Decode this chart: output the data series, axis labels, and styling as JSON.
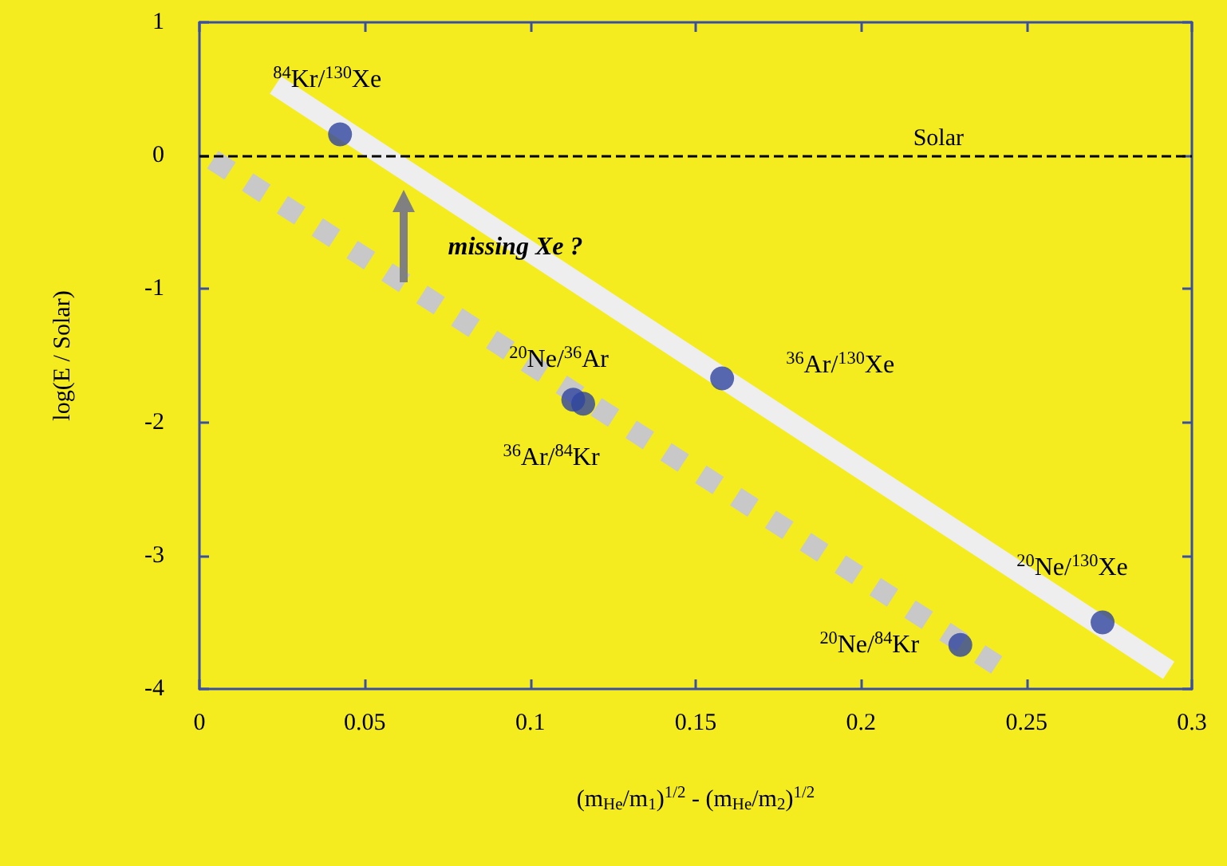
{
  "chart_data": {
    "type": "scatter",
    "xlabel": "(m$_{He}$/m$_{1}$)$^{1/2}$ - (m$_{He}$/m$_{2}$)$^{1/2}$",
    "ylabel": "log(E / Solar)",
    "series": [
      {
        "color": "#2f45a0",
        "x": [
          0.0425,
          0.113,
          0.116,
          0.158,
          0.23,
          0.273
        ],
        "values": [
          0.16,
          -1.83,
          -1.86,
          -1.67,
          -3.67,
          -3.5
        ]
      },
      {
        "type": "line",
        "color": "#eeeeee",
        "line_style": "solid",
        "marker": "none",
        "x": [
          0.023,
          0.293
        ],
        "values": [
          0.53,
          -3.86
        ]
      },
      {
        "type": "line",
        "color": "#c8c8c8",
        "line_style": "dotted",
        "marker": "none",
        "x": [
          0.004,
          0.241
        ],
        "values": [
          -0.03,
          -3.82
        ]
      }
    ],
    "marker": "circle",
    "xlim": [
      0,
      0.3
    ],
    "xticks": [
      0,
      0.05,
      0.1,
      0.15,
      0.2,
      0.25,
      0.3
    ],
    "ylim": [
      -4,
      1
    ],
    "yticks": [
      -4,
      -3,
      -2,
      -1,
      0,
      1
    ],
    "grid": false,
    "ref_lines": [
      {
        "axis": "y",
        "value": 0,
        "label": "Solar",
        "color": "#000000",
        "line_style": "dashed"
      }
    ],
    "annotations": [
      {
        "text": "$^{84}$Kr/$^{130}$Xe",
        "x": 0.0425,
        "y": 0.16
      },
      {
        "text": "$^{20}$Ne/$^{36}$Ar",
        "x": 0.113,
        "y": -1.83
      },
      {
        "text": "$^{36}$Ar/$^{84}$Kr",
        "x": 0.116,
        "y": -1.86
      },
      {
        "text": "$^{36}$Ar/$^{130}$Xe",
        "x": 0.158,
        "y": -1.67
      },
      {
        "text": "$^{20}$Ne/$^{130}$Xe",
        "x": 0.273,
        "y": -3.5
      },
      {
        "text": "$^{20}$Ne/$^{84}$Kr",
        "x": 0.23,
        "y": -3.67
      },
      "missing Xe ?"
    ]
  }
}
